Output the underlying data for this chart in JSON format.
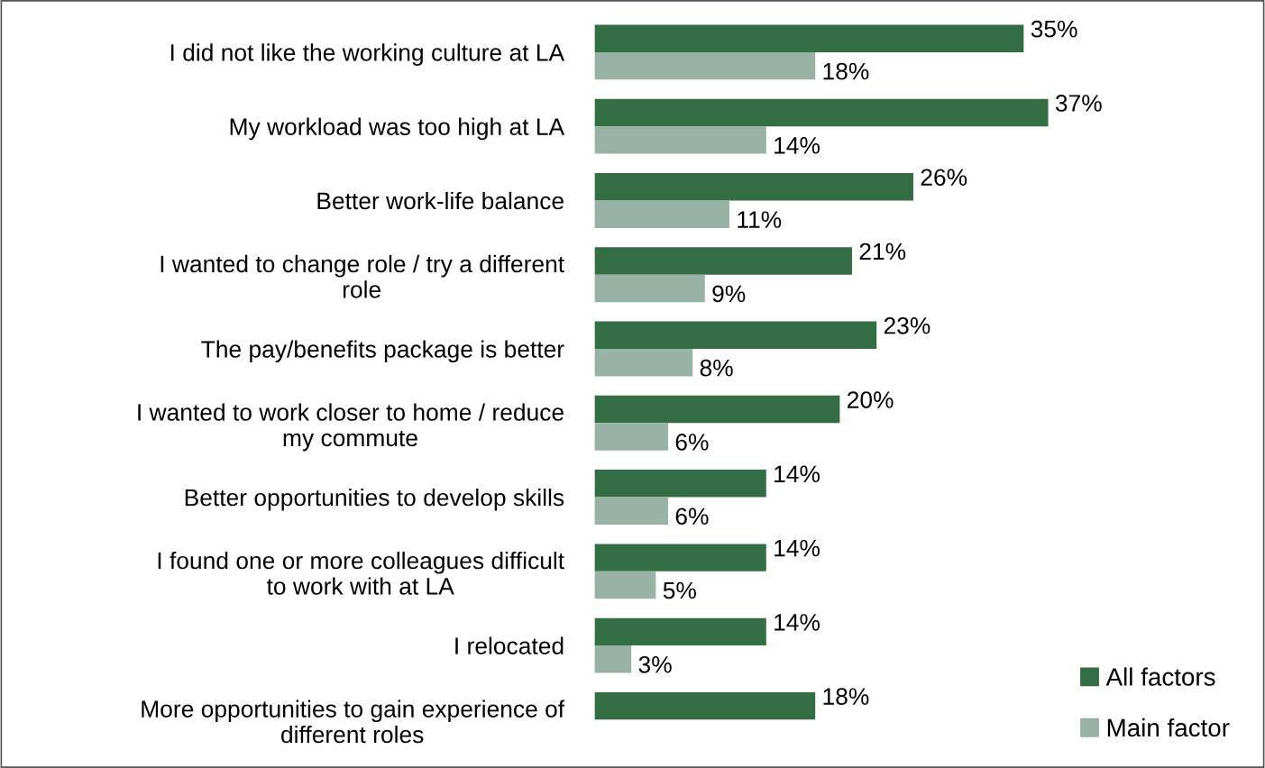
{
  "chart_data": {
    "type": "bar",
    "orientation": "horizontal",
    "categories": [
      "I did not like the working culture at LA",
      "My workload was too high at LA",
      "Better work-life balance",
      "I wanted to change role / try a different\nrole",
      "The pay/benefits package is better",
      "I wanted to work closer to home / reduce\nmy commute",
      "Better opportunities to develop skills",
      "I found one or more colleagues difficult\nto work with at LA",
      "I relocated",
      "More opportunities to gain experience of\ndifferent roles"
    ],
    "series": [
      {
        "name": "All factors",
        "color": "#336d43",
        "values": [
          35,
          37,
          26,
          21,
          23,
          20,
          14,
          14,
          14,
          18
        ],
        "value_labels": [
          "35%",
          "37%",
          "26%",
          "21%",
          "23%",
          "20%",
          "14%",
          "14%",
          "14%",
          "18%"
        ]
      },
      {
        "name": "Main factor",
        "color": "#98b3a6",
        "values": [
          18,
          14,
          11,
          9,
          8,
          6,
          6,
          5,
          3,
          null
        ],
        "value_labels": [
          "18%",
          "14%",
          "11%",
          "9%",
          "8%",
          "6%",
          "6%",
          "5%",
          "3%",
          null
        ]
      }
    ],
    "legend": "bottom right",
    "grid": false
  }
}
